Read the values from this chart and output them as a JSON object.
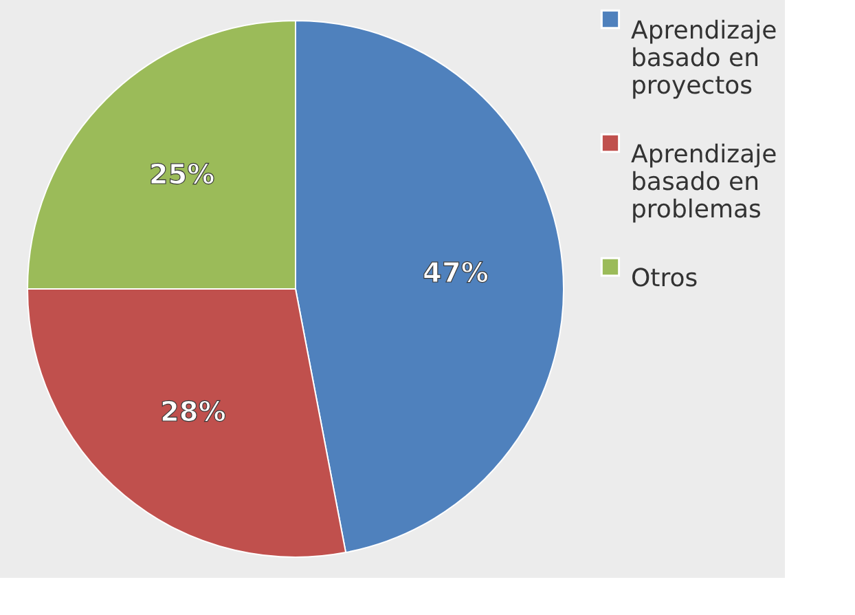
{
  "chart_data": {
    "type": "pie",
    "categories": [
      "Aprendizaje basado en proyectos",
      "Aprendizaje basado en problemas",
      "Otros"
    ],
    "values": [
      47,
      28,
      25
    ],
    "colors": [
      "#4f81bd",
      "#c0504d",
      "#9bbb59"
    ],
    "value_labels": [
      "47%",
      "28%",
      "25%"
    ],
    "legend": "right"
  }
}
